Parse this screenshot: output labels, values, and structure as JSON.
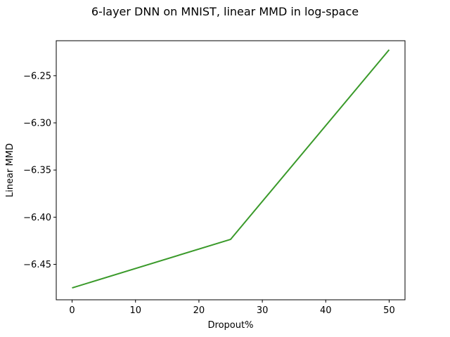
{
  "chart_data": {
    "type": "line",
    "title": "6-layer DNN on MNIST, linear MMD in log-space",
    "xlabel": "Dropout%",
    "ylabel": "Linear MMD",
    "xlim": [
      -2.5,
      52.5
    ],
    "ylim": [
      -6.4876,
      -6.2129
    ],
    "xticks": [
      0,
      10,
      20,
      30,
      40,
      50
    ],
    "yticks": [
      -6.45,
      -6.4,
      -6.35,
      -6.3,
      -6.25
    ],
    "xtick_labels": [
      "0",
      "10",
      "20",
      "30",
      "40",
      "50"
    ],
    "ytick_labels": [
      "−6.45",
      "−6.40",
      "−6.35",
      "−6.30",
      "−6.25"
    ],
    "grid": false,
    "series": [
      {
        "color": "#3a9a2a",
        "x": [
          0,
          25,
          50
        ],
        "y": [
          -6.475,
          -6.4235,
          -6.2225
        ]
      }
    ]
  }
}
